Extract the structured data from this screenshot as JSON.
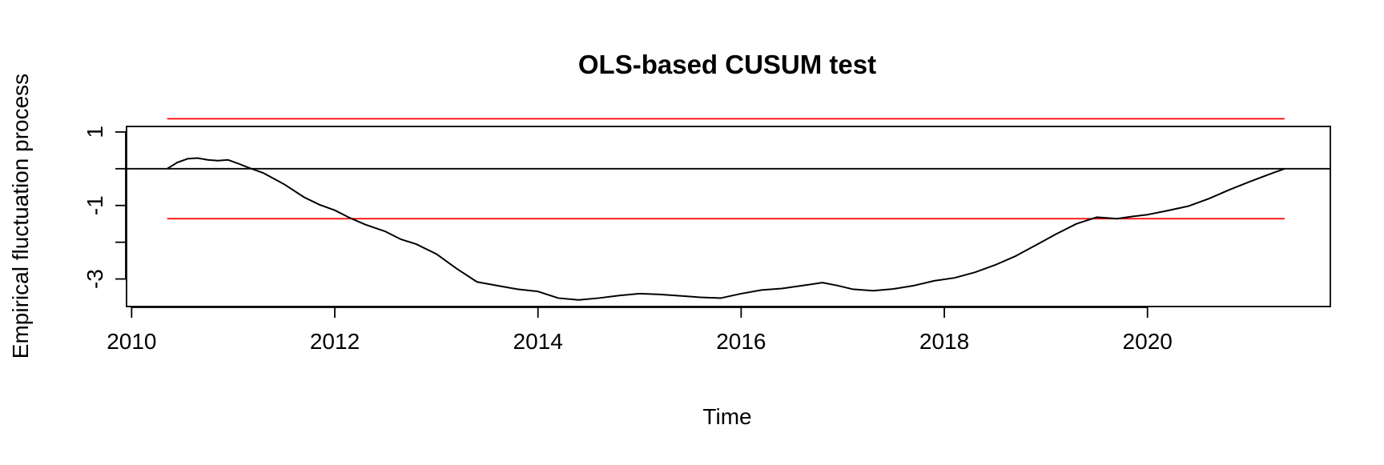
{
  "chart_data": {
    "type": "line",
    "title": "OLS-based CUSUM test",
    "xlabel": "Time",
    "ylabel": "Empirical fluctuation process",
    "xlim": [
      2009.95,
      2021.8
    ],
    "ylim": [
      -3.75,
      1.15
    ],
    "x_ticks": [
      2010,
      2012,
      2014,
      2016,
      2018,
      2020
    ],
    "x_tick_labels": [
      "2010",
      "2012",
      "2014",
      "2016",
      "2018",
      "2020"
    ],
    "y_ticks": [
      1,
      0,
      -1,
      -2,
      -3
    ],
    "y_tick_labels": [
      "1",
      "",
      "-1",
      "",
      "-3"
    ],
    "box": true,
    "grid": false,
    "reference_lines": [
      {
        "role": "zero",
        "y": 0,
        "x_range": [
          2009.95,
          2021.8
        ],
        "color": "#000000"
      },
      {
        "role": "upper_boundary",
        "y": 1.36,
        "x_range": [
          2010.35,
          2021.35
        ],
        "color": "#ff0000"
      },
      {
        "role": "lower_boundary",
        "y": -1.36,
        "x_range": [
          2010.35,
          2021.35
        ],
        "color": "#ff0000"
      }
    ],
    "series": [
      {
        "color": "#000000",
        "points": [
          [
            2010.35,
            0.0
          ],
          [
            2010.45,
            0.17
          ],
          [
            2010.55,
            0.27
          ],
          [
            2010.65,
            0.29
          ],
          [
            2010.75,
            0.24
          ],
          [
            2010.85,
            0.22
          ],
          [
            2010.95,
            0.24
          ],
          [
            2011.05,
            0.14
          ],
          [
            2011.15,
            0.03
          ],
          [
            2011.3,
            -0.12
          ],
          [
            2011.5,
            -0.42
          ],
          [
            2011.7,
            -0.78
          ],
          [
            2011.85,
            -0.98
          ],
          [
            2012.0,
            -1.13
          ],
          [
            2012.15,
            -1.34
          ],
          [
            2012.3,
            -1.52
          ],
          [
            2012.5,
            -1.71
          ],
          [
            2012.65,
            -1.92
          ],
          [
            2012.8,
            -2.05
          ],
          [
            2013.0,
            -2.32
          ],
          [
            2013.2,
            -2.72
          ],
          [
            2013.4,
            -3.08
          ],
          [
            2013.6,
            -3.18
          ],
          [
            2013.8,
            -3.28
          ],
          [
            2014.0,
            -3.34
          ],
          [
            2014.2,
            -3.52
          ],
          [
            2014.4,
            -3.57
          ],
          [
            2014.6,
            -3.52
          ],
          [
            2014.8,
            -3.45
          ],
          [
            2015.0,
            -3.4
          ],
          [
            2015.2,
            -3.42
          ],
          [
            2015.4,
            -3.46
          ],
          [
            2015.6,
            -3.5
          ],
          [
            2015.8,
            -3.52
          ],
          [
            2016.0,
            -3.4
          ],
          [
            2016.2,
            -3.3
          ],
          [
            2016.4,
            -3.26
          ],
          [
            2016.6,
            -3.18
          ],
          [
            2016.8,
            -3.1
          ],
          [
            2016.95,
            -3.18
          ],
          [
            2017.1,
            -3.28
          ],
          [
            2017.3,
            -3.32
          ],
          [
            2017.5,
            -3.27
          ],
          [
            2017.7,
            -3.18
          ],
          [
            2017.9,
            -3.05
          ],
          [
            2018.1,
            -2.97
          ],
          [
            2018.3,
            -2.82
          ],
          [
            2018.5,
            -2.62
          ],
          [
            2018.7,
            -2.38
          ],
          [
            2018.9,
            -2.08
          ],
          [
            2019.1,
            -1.78
          ],
          [
            2019.3,
            -1.5
          ],
          [
            2019.5,
            -1.32
          ],
          [
            2019.7,
            -1.36
          ],
          [
            2019.85,
            -1.3
          ],
          [
            2020.0,
            -1.25
          ],
          [
            2020.2,
            -1.14
          ],
          [
            2020.4,
            -1.02
          ],
          [
            2020.6,
            -0.82
          ],
          [
            2020.8,
            -0.58
          ],
          [
            2021.0,
            -0.36
          ],
          [
            2021.2,
            -0.15
          ],
          [
            2021.35,
            0.0
          ]
        ]
      }
    ]
  }
}
